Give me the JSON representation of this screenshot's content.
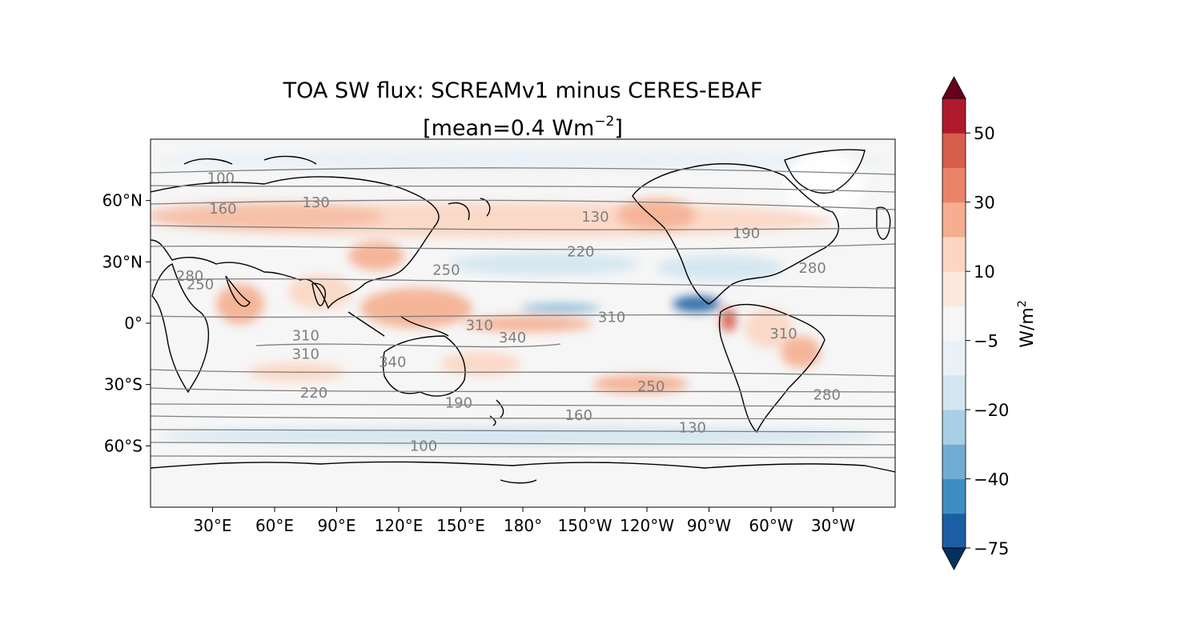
{
  "title": "TOA SW flux: SCREAMv1 minus CERES-EBAF",
  "subtitle": {
    "prefix": "[mean=0.4 Wm",
    "exponent": "−2",
    "suffix": "]"
  },
  "map": {
    "projection": "PlateCarree",
    "central_longitude": 180,
    "lon_ticks": [
      "30°E",
      "60°E",
      "90°E",
      "120°E",
      "150°E",
      "180°",
      "150°W",
      "120°W",
      "90°W",
      "60°W",
      "30°W"
    ],
    "lon_tick_values": [
      30,
      60,
      90,
      120,
      150,
      180,
      210,
      240,
      270,
      300,
      330
    ],
    "lat_ticks": [
      "60°N",
      "30°N",
      "0°",
      "30°S",
      "60°S"
    ],
    "lat_tick_values": [
      60,
      30,
      0,
      -30,
      -60
    ],
    "contour_color": "#7f7f7f",
    "coastline_color": "#000000",
    "contour_labels": [
      {
        "text": "100",
        "lon": 34,
        "lat": 71
      },
      {
        "text": "160",
        "lon": 35,
        "lat": 56
      },
      {
        "text": "130",
        "lon": 80,
        "lat": 59
      },
      {
        "text": "130",
        "lon": 215,
        "lat": 52
      },
      {
        "text": "190",
        "lon": 288,
        "lat": 44
      },
      {
        "text": "220",
        "lon": 208,
        "lat": 35
      },
      {
        "text": "250",
        "lon": 143,
        "lat": 26
      },
      {
        "text": "280",
        "lon": 320,
        "lat": 27
      },
      {
        "text": "280",
        "lon": 19,
        "lat": 23
      },
      {
        "text": "250",
        "lon": 24,
        "lat": 19
      },
      {
        "text": "310",
        "lon": 223,
        "lat": 3
      },
      {
        "text": "310",
        "lon": 159,
        "lat": -1
      },
      {
        "text": "340",
        "lon": 175,
        "lat": -7
      },
      {
        "text": "310",
        "lon": 75,
        "lat": -6
      },
      {
        "text": "310",
        "lon": 75,
        "lat": -15
      },
      {
        "text": "310",
        "lon": 306,
        "lat": -5
      },
      {
        "text": "340",
        "lon": 117,
        "lat": -19
      },
      {
        "text": "280",
        "lon": 327,
        "lat": -35
      },
      {
        "text": "250",
        "lon": 242,
        "lat": -31
      },
      {
        "text": "220",
        "lon": 79,
        "lat": -34
      },
      {
        "text": "190",
        "lon": 149,
        "lat": -39
      },
      {
        "text": "160",
        "lon": 207,
        "lat": -45
      },
      {
        "text": "130",
        "lon": 262,
        "lat": -51
      },
      {
        "text": "100",
        "lon": 132,
        "lat": -60
      }
    ]
  },
  "colorbar": {
    "label": "W/m",
    "label_exponent": "2",
    "levels": [
      -75,
      -60,
      -40,
      -30,
      -20,
      -10,
      -5,
      5,
      10,
      20,
      30,
      40,
      50,
      60
    ],
    "tick_labels": [
      "50",
      "30",
      "10",
      "−5",
      "−20",
      "−40",
      "−75"
    ],
    "tick_values": [
      50,
      30,
      10,
      -5,
      -20,
      -40,
      -75
    ],
    "over_color": "#67001f",
    "under_color": "#053061",
    "colors": [
      "#1b5ea3",
      "#3d8dc2",
      "#71add3",
      "#a8cfe4",
      "#d2e5f0",
      "#e9f1f7",
      "#f6f6f6",
      "#fbe9e0",
      "#fcd6c3",
      "#f5ae90",
      "#e98469",
      "#d55e4c",
      "#b01a2d"
    ]
  }
}
